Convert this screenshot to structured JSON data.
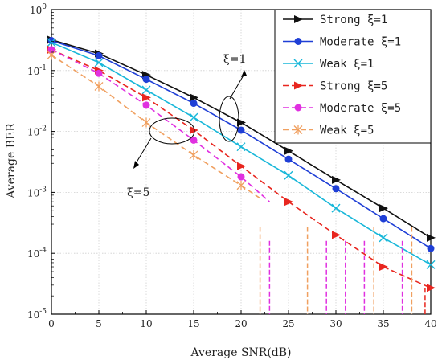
{
  "chart_data": {
    "type": "line",
    "title": "",
    "xlabel": "Average SNR(dB)",
    "ylabel": "Average BER",
    "x_ticks": [
      0,
      5,
      10,
      15,
      20,
      25,
      30,
      35,
      40
    ],
    "xlim": [
      0,
      40
    ],
    "ylim": [
      1e-05,
      1
    ],
    "y_scale": "log",
    "y_tick_labels": [
      {
        "base": "10",
        "exp": "-5",
        "value": 1e-05
      },
      {
        "base": "10",
        "exp": "-4",
        "value": 0.0001
      },
      {
        "base": "10",
        "exp": "-3",
        "value": 0.001
      },
      {
        "base": "10",
        "exp": "-2",
        "value": 0.01
      },
      {
        "base": "10",
        "exp": "-1",
        "value": 0.1
      },
      {
        "base": "10",
        "exp": "0",
        "value": 1
      }
    ],
    "grid": true,
    "legend_position": "top-right",
    "series": [
      {
        "name": "Strong ξ=1",
        "color": "#111111",
        "dash": "solid",
        "marker": "triangle-right",
        "x": [
          0,
          5,
          10,
          15,
          20,
          25,
          30,
          35,
          40
        ],
        "y": [
          0.32,
          0.19,
          0.085,
          0.036,
          0.014,
          0.0048,
          0.0016,
          0.00055,
          0.00018
        ]
      },
      {
        "name": "Moderate ξ=1",
        "color": "#1f3fd6",
        "dash": "solid",
        "marker": "circle",
        "x": [
          0,
          5,
          10,
          15,
          20,
          25,
          30,
          35,
          40
        ],
        "y": [
          0.31,
          0.175,
          0.072,
          0.029,
          0.0105,
          0.0035,
          0.00115,
          0.00037,
          0.00012
        ]
      },
      {
        "name": "Weak ξ=1",
        "color": "#18b7d9",
        "dash": "solid",
        "marker": "x",
        "x": [
          0,
          5,
          10,
          15,
          20,
          25,
          30,
          35,
          40
        ],
        "y": [
          0.29,
          0.135,
          0.048,
          0.017,
          0.0056,
          0.0019,
          0.00055,
          0.00018,
          6.5e-05
        ]
      },
      {
        "name": "Strong ξ=5",
        "color": "#e8261f",
        "dash": "dashed",
        "marker": "triangle-right",
        "x": [
          0,
          5,
          10,
          15,
          20,
          25,
          30,
          35,
          40
        ],
        "y": [
          0.22,
          0.1,
          0.036,
          0.0105,
          0.0027,
          0.0007,
          0.0002,
          6e-05,
          2.7e-05
        ]
      },
      {
        "name": "Moderate ξ=5",
        "color": "#e030e0",
        "dash": "dashed",
        "marker": "circle",
        "x": [
          0,
          5,
          10,
          15,
          20,
          23
        ],
        "y": [
          0.22,
          0.09,
          0.027,
          0.0072,
          0.0018,
          0.0007
        ]
      },
      {
        "name": "Weak ξ=5",
        "color": "#f0a060",
        "dash": "dashed",
        "marker": "asterisk",
        "x": [
          0,
          5,
          10,
          15,
          20,
          22
        ],
        "y": [
          0.18,
          0.055,
          0.014,
          0.0041,
          0.0013,
          0.0008
        ]
      }
    ],
    "annotations": [
      {
        "text": "ξ=1",
        "target": "upper-right ellipse"
      },
      {
        "text": "ξ=5",
        "target": "lower-left ellipse"
      }
    ]
  }
}
